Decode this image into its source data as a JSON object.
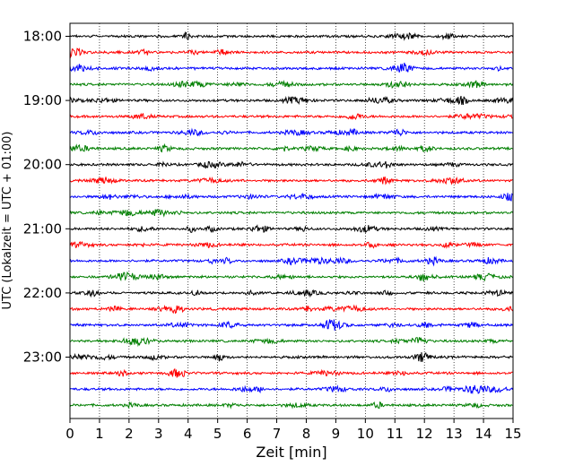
{
  "chart_data": {
    "type": "line",
    "title": "",
    "xlabel": "Zeit  [min]",
    "ylabel": "UTC (Lokalzeit = UTC + 01:00)",
    "xlim": [
      0,
      15
    ],
    "x_ticks": [
      "0",
      "1",
      "2",
      "3",
      "4",
      "5",
      "6",
      "7",
      "8",
      "9",
      "10",
      "11",
      "12",
      "13",
      "14",
      "15"
    ],
    "y_ticks": [
      "18:00",
      "19:00",
      "20:00",
      "21:00",
      "22:00",
      "23:00"
    ],
    "trace_start_times": [
      "18:00",
      "18:15",
      "18:30",
      "18:45",
      "19:00",
      "19:15",
      "19:30",
      "19:45",
      "20:00",
      "20:15",
      "20:30",
      "20:45",
      "21:00",
      "21:15",
      "21:30",
      "21:45",
      "22:00",
      "22:15",
      "22:30",
      "22:45",
      "23:00",
      "23:15",
      "23:30",
      "23:45"
    ],
    "trace_minutes_per_row": 15,
    "trace_colors": [
      "#000000",
      "#ff0000",
      "#0000ff",
      "#007f00"
    ],
    "grid": "x-vertical-dotted",
    "legend": "none"
  }
}
